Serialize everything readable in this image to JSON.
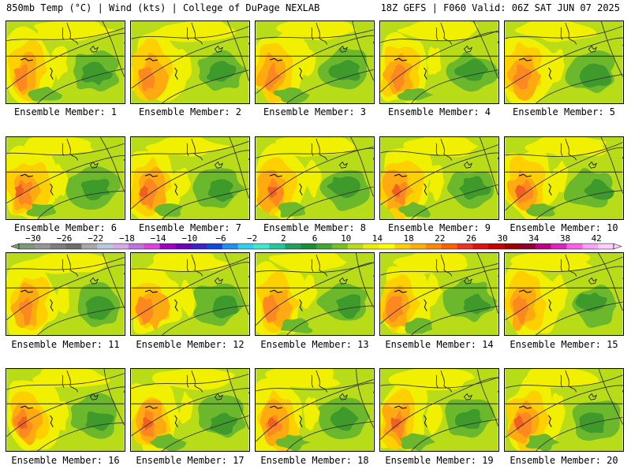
{
  "header": {
    "left": "850mb Temp (°C) | Wind (kts) | College of DuPage NEXLAB",
    "right": "18Z GEFS | F060 Valid: 06Z SAT JUN 07 2025"
  },
  "label_prefix": "Ensemble Member: ",
  "members": [
    {
      "label": "Ensemble Member: 1"
    },
    {
      "label": "Ensemble Member: 2"
    },
    {
      "label": "Ensemble Member: 3"
    },
    {
      "label": "Ensemble Member: 4"
    },
    {
      "label": "Ensemble Member: 5"
    },
    {
      "label": "Ensemble Member: 6"
    },
    {
      "label": "Ensemble Member: 7"
    },
    {
      "label": "Ensemble Member: 8"
    },
    {
      "label": "Ensemble Member: 9"
    },
    {
      "label": "Ensemble Member: 10"
    },
    {
      "label": "Ensemble Member: 11"
    },
    {
      "label": "Ensemble Member: 12"
    },
    {
      "label": "Ensemble Member: 13"
    },
    {
      "label": "Ensemble Member: 14"
    },
    {
      "label": "Ensemble Member: 15"
    },
    {
      "label": "Ensemble Member: 16"
    },
    {
      "label": "Ensemble Member: 17"
    },
    {
      "label": "Ensemble Member: 18"
    },
    {
      "label": "Ensemble Member: 19"
    },
    {
      "label": "Ensemble Member: 20"
    }
  ],
  "colorbar": {
    "tick_labels": [
      "−30",
      "−26",
      "−22",
      "−18",
      "−14",
      "−10",
      "−6",
      "−2",
      "2",
      "6",
      "10",
      "14",
      "18",
      "22",
      "26",
      "30",
      "34",
      "38",
      "42"
    ],
    "colors": [
      "#7a9a7a",
      "#969696",
      "#7d7d7d",
      "#6c6c6c",
      "#a8a8a8",
      "#b8c8e0",
      "#d8a8e8",
      "#c070e0",
      "#e040e0",
      "#a000c8",
      "#7000c0",
      "#4020c8",
      "#1048e0",
      "#2090f0",
      "#30d0f0",
      "#40e8d0",
      "#20c8a0",
      "#20a060",
      "#18903a",
      "#40a830",
      "#78c020",
      "#b8dc18",
      "#e8f000",
      "#ffff00",
      "#ffd000",
      "#ffb000",
      "#ff8800",
      "#ff6000",
      "#f03020",
      "#e01010",
      "#c80000",
      "#a00000",
      "#900030",
      "#c00080",
      "#e020c0",
      "#ff60e8",
      "#ffa0ff",
      "#ffd0ff"
    ]
  },
  "palette": {
    "green_dark": "#3e9a2a",
    "green": "#6cb82c",
    "yellow_green": "#b8dc18",
    "yellow": "#f0f000",
    "orange_light": "#ffd000",
    "orange": "#ffaa10",
    "orange_deep": "#ff8820",
    "red_orange": "#f06020"
  }
}
